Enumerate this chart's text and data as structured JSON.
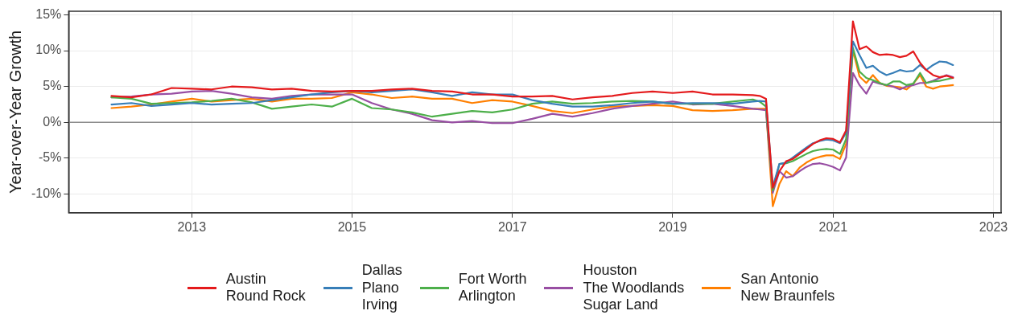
{
  "chart_data": {
    "type": "line",
    "ylabel": "Year-over-Year Growth",
    "x": [
      "2012-01",
      "2012-04",
      "2012-07",
      "2012-10",
      "2013-01",
      "2013-04",
      "2013-07",
      "2013-10",
      "2014-01",
      "2014-04",
      "2014-07",
      "2014-10",
      "2015-01",
      "2015-04",
      "2015-07",
      "2015-10",
      "2016-01",
      "2016-04",
      "2016-07",
      "2016-10",
      "2017-01",
      "2017-04",
      "2017-07",
      "2017-10",
      "2018-01",
      "2018-04",
      "2018-07",
      "2018-10",
      "2019-01",
      "2019-04",
      "2019-07",
      "2019-10",
      "2020-01",
      "2020-02",
      "2020-03",
      "2020-04",
      "2020-05",
      "2020-06",
      "2020-07",
      "2020-08",
      "2020-09",
      "2020-10",
      "2020-11",
      "2020-12",
      "2021-01",
      "2021-02",
      "2021-03",
      "2021-04",
      "2021-05",
      "2021-06",
      "2021-07",
      "2021-08",
      "2021-09",
      "2021-10",
      "2021-11",
      "2021-12",
      "2022-01",
      "2022-02",
      "2022-03",
      "2022-04",
      "2022-05",
      "2022-06",
      "2022-07"
    ],
    "series": [
      {
        "name": "Austin\nRound Rock",
        "color": "#e41a1c",
        "values": [
          3.7,
          3.5,
          3.9,
          4.8,
          4.7,
          4.6,
          5.0,
          4.9,
          4.6,
          4.7,
          4.4,
          4.3,
          4.4,
          4.4,
          4.6,
          4.7,
          4.4,
          4.3,
          3.9,
          3.9,
          3.6,
          3.6,
          3.7,
          3.2,
          3.5,
          3.7,
          4.1,
          4.3,
          4.1,
          4.3,
          3.9,
          3.9,
          3.8,
          3.7,
          3.3,
          -9.1,
          -6.8,
          -5.4,
          -5.1,
          -4.4,
          -3.7,
          -3.0,
          -2.5,
          -2.2,
          -2.3,
          -2.8,
          -1.1,
          14.1,
          10.2,
          10.6,
          9.8,
          9.4,
          9.5,
          9.4,
          9.1,
          9.3,
          9.9,
          8.3,
          7.3,
          6.6,
          6.3,
          6.5,
          6.2
        ]
      },
      {
        "name": "Dallas\nPlano\nIrving",
        "color": "#377eb8",
        "values": [
          2.5,
          2.7,
          2.3,
          2.5,
          2.7,
          2.5,
          2.6,
          2.7,
          3.1,
          3.5,
          3.9,
          4.2,
          4.4,
          4.2,
          4.4,
          4.6,
          4.2,
          3.7,
          4.2,
          3.9,
          3.9,
          3.1,
          2.6,
          2.2,
          2.2,
          2.4,
          2.7,
          2.9,
          2.6,
          2.7,
          2.7,
          2.6,
          2.9,
          3.0,
          2.9,
          -9.0,
          -5.8,
          -5.6,
          -4.9,
          -4.2,
          -3.5,
          -2.9,
          -2.6,
          -2.4,
          -2.5,
          -2.9,
          -1.4,
          11.3,
          9.4,
          7.6,
          7.9,
          7.1,
          6.6,
          6.9,
          7.3,
          7.1,
          7.2,
          8.0,
          7.3,
          8.0,
          8.5,
          8.4,
          8.0
        ]
      },
      {
        "name": "Fort Worth\nArlington",
        "color": "#4daf4a",
        "values": [
          3.5,
          3.3,
          2.6,
          2.7,
          2.8,
          3.0,
          3.3,
          2.8,
          1.9,
          2.2,
          2.5,
          2.2,
          3.3,
          2.0,
          1.8,
          1.4,
          0.8,
          1.2,
          1.6,
          1.4,
          1.8,
          2.6,
          2.9,
          2.6,
          2.7,
          2.9,
          3.0,
          2.9,
          2.6,
          2.6,
          2.6,
          2.9,
          3.2,
          2.9,
          2.2,
          -9.5,
          -5.8,
          -5.7,
          -5.4,
          -4.9,
          -4.4,
          -4.0,
          -3.8,
          -3.7,
          -3.8,
          -4.4,
          -2.3,
          10.4,
          7.1,
          6.2,
          5.9,
          5.5,
          5.2,
          5.7,
          5.7,
          5.2,
          5.4,
          6.9,
          5.5,
          5.7,
          5.8,
          6.0,
          6.2
        ]
      },
      {
        "name": "Houston\nThe Woodlands\nSugar Land",
        "color": "#984ea3",
        "values": [
          3.5,
          3.6,
          3.9,
          4.0,
          4.3,
          4.4,
          4.0,
          3.5,
          3.3,
          3.7,
          3.9,
          3.9,
          3.9,
          2.7,
          1.8,
          1.2,
          0.3,
          0.0,
          0.2,
          -0.1,
          -0.1,
          0.5,
          1.2,
          0.8,
          1.3,
          1.9,
          2.3,
          2.6,
          2.9,
          2.5,
          2.6,
          2.3,
          1.9,
          1.8,
          1.7,
          -9.8,
          -6.8,
          -7.7,
          -7.5,
          -6.8,
          -6.2,
          -5.8,
          -5.7,
          -5.9,
          -6.2,
          -6.7,
          -4.9,
          6.9,
          5.2,
          4.0,
          5.7,
          5.4,
          5.2,
          5.0,
          4.6,
          5.0,
          5.2,
          5.5,
          5.5,
          5.8,
          6.2,
          6.6,
          6.3
        ]
      },
      {
        "name": "San Antonio\nNew Braunfels",
        "color": "#ff7f00",
        "values": [
          2.0,
          2.2,
          2.5,
          2.9,
          3.3,
          2.9,
          3.1,
          3.3,
          2.9,
          3.3,
          3.3,
          3.4,
          4.2,
          3.9,
          3.4,
          3.6,
          3.3,
          3.3,
          2.7,
          3.1,
          2.9,
          2.3,
          1.6,
          1.3,
          1.8,
          2.2,
          2.3,
          2.4,
          2.3,
          1.7,
          1.6,
          1.7,
          1.9,
          1.9,
          1.9,
          -11.7,
          -8.6,
          -6.8,
          -7.5,
          -6.3,
          -5.6,
          -5.1,
          -4.8,
          -4.6,
          -4.6,
          -5.1,
          -3.0,
          10.1,
          6.4,
          5.5,
          6.6,
          5.5,
          5.1,
          5.0,
          4.9,
          4.6,
          5.4,
          6.6,
          5.0,
          4.7,
          5.0,
          5.1,
          5.2
        ]
      }
    ],
    "xlim": [
      "2011-06-20",
      "2023-02-05"
    ],
    "xticks": [
      "2013",
      "2015",
      "2017",
      "2019",
      "2021",
      "2023"
    ],
    "ylim": [
      -12.6,
      15.5
    ],
    "yticks": [
      {
        "value": -10,
        "label": "-10%"
      },
      {
        "value": -5,
        "label": "-5%"
      },
      {
        "value": 0,
        "label": "0%"
      },
      {
        "value": 5,
        "label": "5%"
      },
      {
        "value": 10,
        "label": "10%"
      },
      {
        "value": 15,
        "label": "15%"
      }
    ],
    "ref_lines": [
      {
        "axis": "y",
        "value": 0,
        "color": "#8c8c8c"
      }
    ],
    "grid": true,
    "legend": "bottom",
    "marker": "none",
    "line_style": "solid"
  }
}
